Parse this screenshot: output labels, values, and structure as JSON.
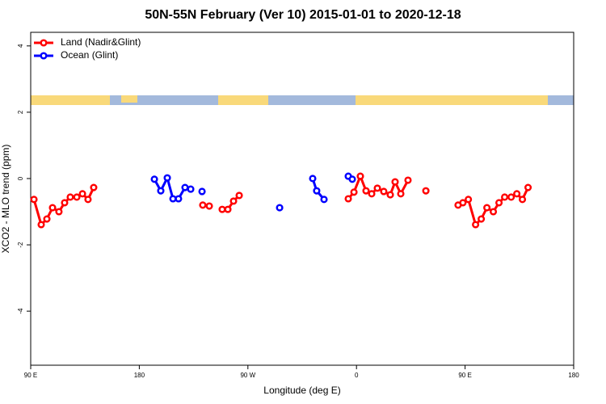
{
  "chart_data": {
    "type": "line",
    "title": "50N-55N February (Ver 10)   2015-01-01 to 2020-12-18",
    "x_label": "Longitude (deg E)",
    "y_label": "XCO2 - MLO trend (ppm)",
    "xlim": [
      90,
      540
    ],
    "ylim": [
      -5.63,
      4.41
    ],
    "xticks": [
      {
        "value": 90,
        "label": "90 E"
      },
      {
        "value": 180,
        "label": "180"
      },
      {
        "value": 270,
        "label": "90 W"
      },
      {
        "value": 360,
        "label": "0"
      },
      {
        "value": 450,
        "label": "90 E"
      },
      {
        "value": 540,
        "label": "180"
      }
    ],
    "yticks": [
      -4,
      -2,
      0,
      2,
      4
    ],
    "legend": "top-left",
    "series": [
      {
        "name": "Land (Nadir&Glint)",
        "color": "#ff0000",
        "x": [
          92.7,
          98.7,
          103.4,
          108.1,
          113.4,
          118.1,
          122.8,
          128.2,
          132.9,
          137.5,
          142.2,
          null,
          232.6,
          238.0,
          null,
          248.7,
          253.4,
          258.1,
          262.8,
          null,
          353.2,
          357.9,
          363.2,
          367.9,
          372.6,
          377.3,
          382.6,
          388.0,
          392.0,
          396.7,
          402.7,
          null,
          417.5,
          null,
          444.2,
          448.2,
          452.7,
          458.7,
          463.4,
          468.1,
          473.4,
          478.1,
          482.8,
          488.2,
          492.9,
          497.5,
          502.2
        ],
        "values": [
          -0.63,
          -1.39,
          -1.22,
          -0.88,
          -1.0,
          -0.73,
          -0.56,
          -0.56,
          -0.46,
          -0.63,
          -0.27,
          null,
          -0.8,
          -0.83,
          null,
          -0.93,
          -0.93,
          -0.68,
          -0.51,
          null,
          -0.61,
          -0.41,
          0.07,
          -0.37,
          -0.46,
          -0.29,
          -0.39,
          -0.49,
          -0.1,
          -0.46,
          -0.05,
          null,
          -0.37,
          null,
          -0.8,
          -0.73,
          -0.63,
          -1.39,
          -1.22,
          -0.88,
          -1.0,
          -0.73,
          -0.56,
          -0.56,
          -0.46,
          -0.63,
          -0.27
        ]
      },
      {
        "name": "Ocean (Glint)",
        "color": "#0000ff",
        "x": [
          192.5,
          197.8,
          203.2,
          207.9,
          212.5,
          217.9,
          222.6,
          null,
          232.0,
          null,
          296.3,
          null,
          323.7,
          327.0,
          333.1,
          null,
          353.2,
          356.5
        ],
        "values": [
          -0.02,
          -0.37,
          0.02,
          -0.61,
          -0.61,
          -0.27,
          -0.32,
          null,
          -0.39,
          null,
          -0.88,
          null,
          0.0,
          -0.37,
          -0.63,
          null,
          0.07,
          -0.02
        ]
      }
    ]
  }
}
